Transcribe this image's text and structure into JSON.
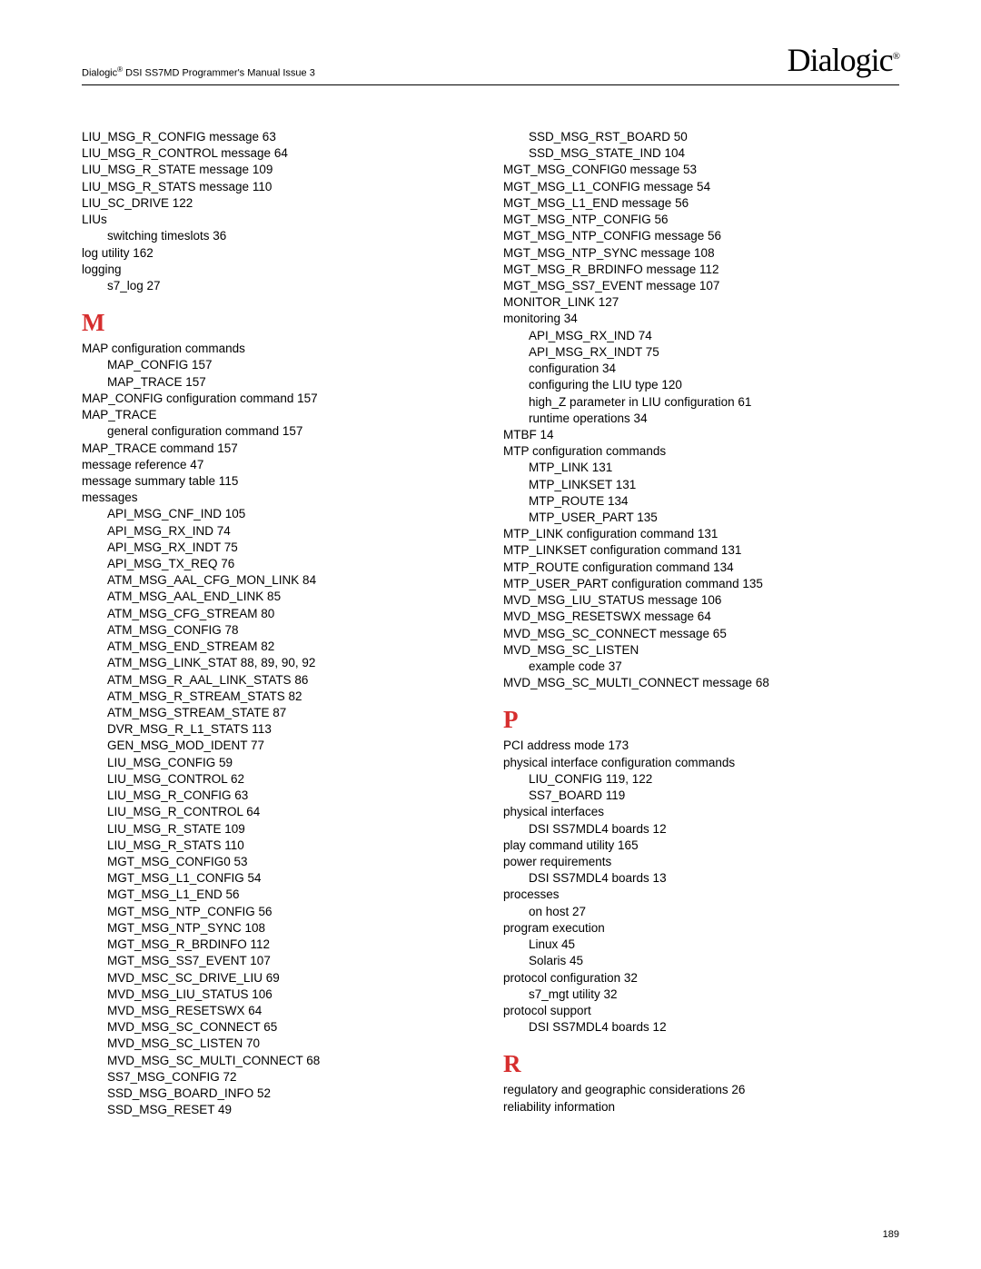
{
  "header": {
    "manual_title_html": "Dialogic<sup>®</sup> DSI SS7MD Programmer's Manual Issue 3",
    "logo_text": "Dialogic",
    "logo_reg": "®"
  },
  "page_number": "189",
  "col1": [
    {
      "t": "LIU_MSG_R_CONFIG message 63"
    },
    {
      "t": "LIU_MSG_R_CONTROL message 64"
    },
    {
      "t": "LIU_MSG_R_STATE message 109"
    },
    {
      "t": "LIU_MSG_R_STATS message 110"
    },
    {
      "t": "LIU_SC_DRIVE 122"
    },
    {
      "t": "LIUs"
    },
    {
      "t": "switching timeslots 36",
      "i": 1
    },
    {
      "t": "log utility 162"
    },
    {
      "t": "logging"
    },
    {
      "t": "s7_log 27",
      "i": 1
    },
    {
      "h": "M"
    },
    {
      "t": "MAP configuration commands"
    },
    {
      "t": "MAP_CONFIG 157",
      "i": 1
    },
    {
      "t": "MAP_TRACE 157",
      "i": 1
    },
    {
      "t": "MAP_CONFIG configuration command 157"
    },
    {
      "t": "MAP_TRACE"
    },
    {
      "t": "general configuration command 157",
      "i": 1
    },
    {
      "t": "MAP_TRACE command 157"
    },
    {
      "t": "message reference 47"
    },
    {
      "t": "message summary table 115"
    },
    {
      "t": "messages"
    },
    {
      "t": "API_MSG_CNF_IND 105",
      "i": 1
    },
    {
      "t": "API_MSG_RX_IND 74",
      "i": 1
    },
    {
      "t": "API_MSG_RX_INDT 75",
      "i": 1
    },
    {
      "t": "API_MSG_TX_REQ 76",
      "i": 1
    },
    {
      "t": "ATM_MSG_AAL_CFG_MON_LINK 84",
      "i": 1
    },
    {
      "t": "ATM_MSG_AAL_END_LINK 85",
      "i": 1
    },
    {
      "t": "ATM_MSG_CFG_STREAM 80",
      "i": 1
    },
    {
      "t": "ATM_MSG_CONFIG 78",
      "i": 1
    },
    {
      "t": "ATM_MSG_END_STREAM 82",
      "i": 1
    },
    {
      "t": "ATM_MSG_LINK_STAT 88, 89, 90, 92",
      "i": 1
    },
    {
      "t": "ATM_MSG_R_AAL_LINK_STATS 86",
      "i": 1
    },
    {
      "t": "ATM_MSG_R_STREAM_STATS 82",
      "i": 1
    },
    {
      "t": "ATM_MSG_STREAM_STATE 87",
      "i": 1
    },
    {
      "t": "DVR_MSG_R_L1_STATS 113",
      "i": 1
    },
    {
      "t": "GEN_MSG_MOD_IDENT 77",
      "i": 1
    },
    {
      "t": "LIU_MSG_CONFIG 59",
      "i": 1
    },
    {
      "t": "LIU_MSG_CONTROL 62",
      "i": 1
    },
    {
      "t": "LIU_MSG_R_CONFIG 63",
      "i": 1
    },
    {
      "t": "LIU_MSG_R_CONTROL 64",
      "i": 1
    },
    {
      "t": "LIU_MSG_R_STATE 109",
      "i": 1
    },
    {
      "t": "LIU_MSG_R_STATS 110",
      "i": 1
    },
    {
      "t": "MGT_MSG_CONFIG0 53",
      "i": 1
    },
    {
      "t": "MGT_MSG_L1_CONFIG 54",
      "i": 1
    },
    {
      "t": "MGT_MSG_L1_END 56",
      "i": 1
    },
    {
      "t": "MGT_MSG_NTP_CONFIG 56",
      "i": 1
    },
    {
      "t": "MGT_MSG_NTP_SYNC 108",
      "i": 1
    },
    {
      "t": "MGT_MSG_R_BRDINFO 112",
      "i": 1
    },
    {
      "t": "MGT_MSG_SS7_EVENT 107",
      "i": 1
    },
    {
      "t": "MVD_MSC_SC_DRIVE_LIU 69",
      "i": 1
    },
    {
      "t": "MVD_MSG_LIU_STATUS 106",
      "i": 1
    },
    {
      "t": "MVD_MSG_RESETSWX 64",
      "i": 1
    },
    {
      "t": "MVD_MSG_SC_CONNECT 65",
      "i": 1
    },
    {
      "t": "MVD_MSG_SC_LISTEN 70",
      "i": 1
    },
    {
      "t": "MVD_MSG_SC_MULTI_CONNECT 68",
      "i": 1
    },
    {
      "t": "SS7_MSG_CONFIG 72",
      "i": 1
    },
    {
      "t": "SSD_MSG_BOARD_INFO 52",
      "i": 1
    },
    {
      "t": "SSD_MSG_RESET 49",
      "i": 1
    }
  ],
  "col2": [
    {
      "t": "SSD_MSG_RST_BOARD 50",
      "i": 1
    },
    {
      "t": "SSD_MSG_STATE_IND 104",
      "i": 1
    },
    {
      "t": "MGT_MSG_CONFIG0 message 53"
    },
    {
      "t": "MGT_MSG_L1_CONFIG message 54"
    },
    {
      "t": "MGT_MSG_L1_END message 56"
    },
    {
      "t": "MGT_MSG_NTP_CONFIG 56"
    },
    {
      "t": "MGT_MSG_NTP_CONFIG message 56"
    },
    {
      "t": "MGT_MSG_NTP_SYNC message 108"
    },
    {
      "t": "MGT_MSG_R_BRDINFO message 112"
    },
    {
      "t": "MGT_MSG_SS7_EVENT message 107"
    },
    {
      "t": "MONITOR_LINK 127"
    },
    {
      "t": "monitoring 34"
    },
    {
      "t": "API_MSG_RX_IND 74",
      "i": 1
    },
    {
      "t": "API_MSG_RX_INDT 75",
      "i": 1
    },
    {
      "t": "configuration 34",
      "i": 1
    },
    {
      "t": "configuring the LIU type 120",
      "i": 1
    },
    {
      "t": "high_Z parameter in LIU configuration 61",
      "i": 1
    },
    {
      "t": "runtime operations 34",
      "i": 1
    },
    {
      "t": "MTBF 14"
    },
    {
      "t": "MTP configuration commands"
    },
    {
      "t": "MTP_LINK 131",
      "i": 1
    },
    {
      "t": "MTP_LINKSET 131",
      "i": 1
    },
    {
      "t": "MTP_ROUTE 134",
      "i": 1
    },
    {
      "t": "MTP_USER_PART 135",
      "i": 1
    },
    {
      "t": "MTP_LINK configuration command 131"
    },
    {
      "t": "MTP_LINKSET configuration command 131"
    },
    {
      "t": "MTP_ROUTE configuration command 134"
    },
    {
      "t": "MTP_USER_PART configuration command 135"
    },
    {
      "t": "MVD_MSG_LIU_STATUS message 106"
    },
    {
      "t": "MVD_MSG_RESETSWX message 64"
    },
    {
      "t": "MVD_MSG_SC_CONNECT message 65"
    },
    {
      "t": "MVD_MSG_SC_LISTEN"
    },
    {
      "t": "example code 37",
      "i": 1
    },
    {
      "t": "MVD_MSG_SC_MULTI_CONNECT message 68"
    },
    {
      "h": "P"
    },
    {
      "t": "PCI address mode 173"
    },
    {
      "t": "physical interface configuration commands"
    },
    {
      "t": "LIU_CONFIG 119, 122",
      "i": 1
    },
    {
      "t": "SS7_BOARD 119",
      "i": 1
    },
    {
      "t": "physical interfaces"
    },
    {
      "t": "DSI SS7MDL4 boards 12",
      "i": 1
    },
    {
      "t": "play command utility 165"
    },
    {
      "t": "power requirements"
    },
    {
      "t": "DSI SS7MDL4 boards 13",
      "i": 1
    },
    {
      "t": "processes"
    },
    {
      "t": "on host 27",
      "i": 1
    },
    {
      "t": "program execution"
    },
    {
      "t": "Linux 45",
      "i": 1
    },
    {
      "t": "Solaris 45",
      "i": 1
    },
    {
      "t": "protocol configuration 32"
    },
    {
      "t": "s7_mgt utility 32",
      "i": 1
    },
    {
      "t": "protocol support"
    },
    {
      "t": "DSI SS7MDL4 boards 12",
      "i": 1
    },
    {
      "h": "R"
    },
    {
      "t": "regulatory and geographic considerations 26"
    },
    {
      "t": "reliability information"
    }
  ],
  "colors": {
    "heading": "#d62e2e",
    "text": "#000000",
    "bg": "#ffffff"
  }
}
